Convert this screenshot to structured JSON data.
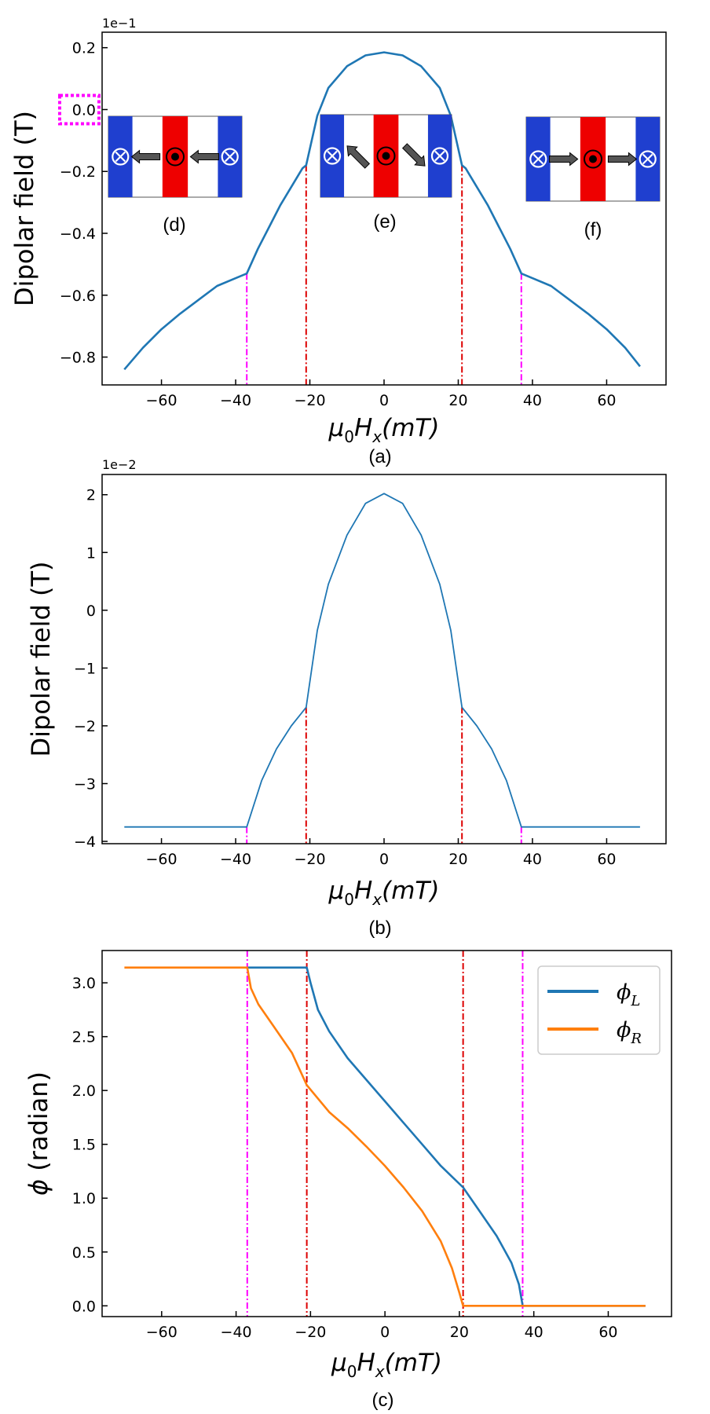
{
  "chart_data": [
    {
      "id": "a",
      "type": "line",
      "caption": "(a)",
      "ylabel": "Dipolar field (T)",
      "xlabel_main": "μ",
      "xlabel_sub1": "0",
      "xlabel_mid": "H",
      "xlabel_sub2": "x",
      "xlabel_tail": "(mT)",
      "offset_text": "1e−1",
      "xlim": [
        -76,
        76
      ],
      "ylim": [
        -0.89,
        0.25
      ],
      "xticks": [
        -60,
        -40,
        -20,
        0,
        20,
        40,
        60
      ],
      "xtick_labels": [
        "−60",
        "−40",
        "−20",
        "0",
        "20",
        "40",
        "60"
      ],
      "yticks": [
        0.2,
        0.0,
        -0.2,
        -0.4,
        -0.6,
        -0.8
      ],
      "ytick_labels": [
        "0.2",
        "0.0",
        "−0.2",
        "−0.4",
        "−0.6",
        "−0.8"
      ],
      "series": [
        {
          "name": "dipolar field",
          "color": "#1f77b4",
          "x": [
            -70,
            -65,
            -60,
            -55,
            -50,
            -45,
            -40,
            -37,
            -34,
            -31,
            -28,
            -25,
            -22,
            -21,
            -18,
            -15,
            -10,
            -5,
            0,
            5,
            10,
            15,
            18,
            21,
            22,
            25,
            28,
            31,
            34,
            37,
            40,
            45,
            50,
            55,
            60,
            65,
            69
          ],
          "y": [
            -0.84,
            -0.77,
            -0.71,
            -0.66,
            -0.615,
            -0.57,
            -0.545,
            -0.53,
            -0.45,
            -0.38,
            -0.31,
            -0.25,
            -0.19,
            -0.18,
            -0.02,
            0.07,
            0.14,
            0.175,
            0.185,
            0.175,
            0.14,
            0.07,
            -0.02,
            -0.18,
            -0.19,
            -0.25,
            -0.31,
            -0.38,
            -0.45,
            -0.53,
            -0.545,
            -0.57,
            -0.615,
            -0.66,
            -0.71,
            -0.77,
            -0.83
          ]
        }
      ],
      "vlines": [
        {
          "x": -37,
          "y_top": -0.53,
          "color": "#ff00ff"
        },
        {
          "x": -21,
          "y_top": -0.18,
          "color": "#dd0000"
        },
        {
          "x": 21,
          "y_top": -0.18,
          "color": "#dd0000"
        },
        {
          "x": 37,
          "y_top": -0.53,
          "color": "#ff00ff"
        }
      ],
      "insets": [
        {
          "label": "(d)",
          "middle_symbol": "dot",
          "left_arrow": "left",
          "right_arrow": "left"
        },
        {
          "label": "(e)",
          "middle_symbol": "dot",
          "left_arrow": "up-left",
          "right_arrow": "down-right"
        },
        {
          "label": "(f)",
          "middle_symbol": "dot",
          "left_arrow": "right",
          "right_arrow": "right"
        }
      ]
    },
    {
      "id": "b",
      "type": "line",
      "caption": "(b)",
      "ylabel": "Dipolar field (T)",
      "xlabel_main": "μ",
      "xlabel_sub1": "0",
      "xlabel_mid": "H",
      "xlabel_sub2": "x",
      "xlabel_tail": "(mT)",
      "offset_text": "1e−2",
      "xlim": [
        -76,
        76
      ],
      "ylim": [
        -4.04,
        2.35
      ],
      "xticks": [
        -60,
        -40,
        -20,
        0,
        20,
        40,
        60
      ],
      "xtick_labels": [
        "−60",
        "−40",
        "−20",
        "0",
        "20",
        "40",
        "60"
      ],
      "yticks": [
        2,
        1,
        0,
        -1,
        -2,
        -3,
        -4
      ],
      "ytick_labels": [
        "2",
        "1",
        "0",
        "−1",
        "−2",
        "−3",
        "−4"
      ],
      "series": [
        {
          "name": "dipolar field",
          "color": "#1f77b4",
          "x": [
            -70,
            -60,
            -50,
            -40,
            -37,
            -33,
            -29,
            -25,
            -21,
            -18,
            -15,
            -10,
            -5,
            0,
            5,
            10,
            15,
            18,
            21,
            25,
            29,
            33,
            37,
            40,
            50,
            60,
            69
          ],
          "y": [
            -3.75,
            -3.75,
            -3.75,
            -3.75,
            -3.75,
            -2.95,
            -2.4,
            -2.0,
            -1.68,
            -0.35,
            0.45,
            1.3,
            1.85,
            2.02,
            1.85,
            1.3,
            0.45,
            -0.35,
            -1.68,
            -2.0,
            -2.4,
            -2.95,
            -3.75,
            -3.75,
            -3.75,
            -3.75,
            -3.75
          ]
        }
      ],
      "vlines": [
        {
          "x": -37,
          "y_top": -3.75,
          "color": "#ff00ff"
        },
        {
          "x": -21,
          "y_top": -1.68,
          "color": "#dd0000"
        },
        {
          "x": 21,
          "y_top": -1.68,
          "color": "#dd0000"
        },
        {
          "x": 37,
          "y_top": -3.75,
          "color": "#ff00ff"
        }
      ]
    },
    {
      "id": "c",
      "type": "line",
      "caption": "(c)",
      "ylabel": "(radian)",
      "ylabel_symbol": "ϕ",
      "xlabel_main": "μ",
      "xlabel_sub1": "0",
      "xlabel_mid": "H",
      "xlabel_sub2": "x",
      "xlabel_tail": "(mT)",
      "xlim": [
        -76,
        77
      ],
      "ylim": [
        -0.1,
        3.3
      ],
      "xticks": [
        -60,
        -40,
        -20,
        0,
        20,
        40,
        60
      ],
      "xtick_labels": [
        "−60",
        "−40",
        "−20",
        "0",
        "20",
        "40",
        "60"
      ],
      "yticks": [
        3.0,
        2.5,
        2.0,
        1.5,
        1.0,
        0.5,
        0.0
      ],
      "ytick_labels": [
        "3.0",
        "2.5",
        "2.0",
        "1.5",
        "1.0",
        "0.5",
        "0.0"
      ],
      "series": [
        {
          "name": "ϕ_L",
          "legend_main": "ϕ",
          "legend_sub": "L",
          "color": "#1f77b4",
          "x": [
            -37,
            -30,
            -21,
            -20,
            -18,
            -15,
            -10,
            -5,
            0,
            5,
            10,
            15,
            18,
            21,
            25,
            30,
            34,
            36,
            37,
            40,
            50,
            60,
            70
          ],
          "y": [
            3.1416,
            3.1416,
            3.1416,
            3.0,
            2.75,
            2.55,
            2.3,
            2.1,
            1.9,
            1.7,
            1.5,
            1.3,
            1.2,
            1.1,
            0.9,
            0.65,
            0.4,
            0.2,
            0.0,
            0.0,
            0.0,
            0.0,
            0.0
          ]
        },
        {
          "name": "ϕ_R",
          "legend_main": "ϕ",
          "legend_sub": "R",
          "color": "#ff7f0e",
          "x": [
            -70,
            -60,
            -50,
            -40,
            -37,
            -36,
            -34,
            -30,
            -25,
            -21,
            -15,
            -10,
            -5,
            0,
            5,
            10,
            15,
            18,
            20,
            21,
            30,
            40,
            50,
            60,
            70
          ],
          "y": [
            3.1416,
            3.1416,
            3.1416,
            3.1416,
            3.1416,
            2.95,
            2.8,
            2.6,
            2.35,
            2.05,
            1.8,
            1.65,
            1.48,
            1.3,
            1.1,
            0.88,
            0.6,
            0.35,
            0.12,
            0.0,
            0.0,
            0.0,
            0.0,
            0.0,
            0.0
          ]
        }
      ],
      "vlines": [
        {
          "x": -37,
          "y_top": 3.3,
          "color": "#ff00ff"
        },
        {
          "x": -21,
          "y_top": 3.3,
          "color": "#dd0000"
        },
        {
          "x": 21,
          "y_top": 3.3,
          "color": "#dd0000"
        },
        {
          "x": 37,
          "y_top": 3.3,
          "color": "#ff00ff"
        }
      ]
    }
  ]
}
